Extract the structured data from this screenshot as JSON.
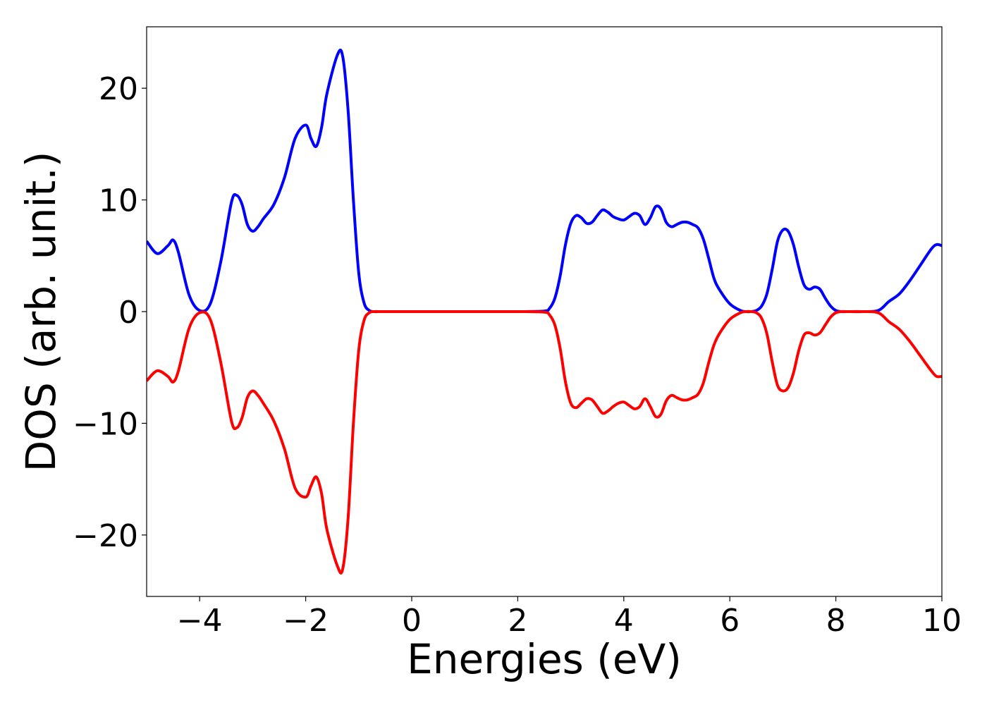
{
  "chart_data": {
    "type": "line",
    "title": "",
    "xlabel": "Energies (eV)",
    "ylabel": "DOS (arb. unit.)",
    "xlim": [
      -5,
      10
    ],
    "ylim": [
      -25.5,
      25.5
    ],
    "xticks": [
      -4,
      -2,
      0,
      2,
      4,
      6,
      8,
      10
    ],
    "xtick_labels": [
      "−4",
      "−2",
      "0",
      "2",
      "4",
      "6",
      "8",
      "10"
    ],
    "yticks": [
      20,
      10,
      0,
      -10,
      -20
    ],
    "ytick_labels": [
      "20",
      "10",
      "0",
      "−10",
      "−20"
    ],
    "grid": false,
    "legend": "none",
    "series": [
      {
        "color": "#0000ff",
        "x": [
          -5.0,
          -4.8,
          -4.6,
          -4.5,
          -4.4,
          -4.2,
          -4.0,
          -3.8,
          -3.6,
          -3.4,
          -3.3,
          -3.2,
          -3.1,
          -3.0,
          -2.9,
          -2.8,
          -2.6,
          -2.4,
          -2.2,
          -2.0,
          -1.9,
          -1.8,
          -1.7,
          -1.6,
          -1.4,
          -1.3,
          -1.2,
          -1.1,
          -1.0,
          -0.9,
          -0.8,
          -0.7,
          -0.6,
          -0.5,
          0.0,
          1.0,
          2.0,
          2.5,
          2.6,
          2.7,
          2.8,
          2.9,
          3.0,
          3.1,
          3.2,
          3.3,
          3.4,
          3.5,
          3.6,
          3.7,
          3.8,
          3.9,
          4.0,
          4.1,
          4.2,
          4.3,
          4.4,
          4.5,
          4.6,
          4.7,
          4.8,
          4.9,
          5.0,
          5.1,
          5.2,
          5.3,
          5.4,
          5.5,
          5.6,
          5.7,
          5.8,
          6.0,
          6.2,
          6.3,
          6.4,
          6.5,
          6.6,
          6.7,
          6.8,
          6.9,
          7.0,
          7.1,
          7.2,
          7.3,
          7.4,
          7.5,
          7.6,
          7.7,
          7.8,
          7.9,
          8.0,
          8.1,
          8.2,
          8.5,
          8.8,
          9.0,
          9.2,
          9.4,
          9.6,
          9.8,
          9.9,
          10.0
        ],
        "y": [
          6.3,
          5.2,
          5.9,
          6.4,
          5.3,
          1.5,
          0.1,
          0.7,
          4.5,
          9.8,
          10.4,
          9.6,
          7.8,
          7.2,
          7.6,
          8.3,
          9.6,
          12.0,
          15.5,
          16.7,
          15.5,
          14.8,
          16.5,
          19.5,
          23.0,
          22.8,
          18.0,
          10.0,
          3.5,
          0.8,
          0.1,
          0.0,
          0.0,
          0.0,
          0.0,
          0.0,
          0.0,
          0.05,
          0.3,
          1.2,
          3.2,
          6.0,
          7.9,
          8.6,
          8.4,
          7.9,
          8.0,
          8.6,
          9.1,
          8.9,
          8.5,
          8.3,
          8.2,
          8.5,
          8.8,
          8.6,
          7.8,
          8.4,
          9.4,
          9.2,
          8.0,
          7.6,
          7.8,
          8.0,
          8.0,
          7.8,
          7.5,
          6.5,
          4.8,
          3.0,
          2.0,
          0.7,
          0.1,
          0.0,
          0.0,
          0.1,
          0.5,
          1.6,
          3.8,
          6.3,
          7.3,
          7.2,
          6.0,
          4.0,
          2.4,
          2.0,
          2.2,
          2.0,
          1.2,
          0.5,
          0.1,
          0.0,
          0.0,
          0.0,
          0.1,
          0.9,
          1.6,
          2.8,
          4.2,
          5.6,
          6.0,
          5.9
        ]
      },
      {
        "color": "#ff0000",
        "x": [
          -5.0,
          -4.8,
          -4.6,
          -4.5,
          -4.4,
          -4.2,
          -4.0,
          -3.8,
          -3.6,
          -3.4,
          -3.3,
          -3.2,
          -3.1,
          -3.0,
          -2.9,
          -2.8,
          -2.6,
          -2.4,
          -2.2,
          -2.0,
          -1.9,
          -1.8,
          -1.7,
          -1.6,
          -1.4,
          -1.3,
          -1.2,
          -1.1,
          -1.0,
          -0.9,
          -0.8,
          -0.7,
          -0.6,
          -0.5,
          0.0,
          1.0,
          2.0,
          2.5,
          2.6,
          2.7,
          2.8,
          2.9,
          3.0,
          3.1,
          3.2,
          3.3,
          3.4,
          3.5,
          3.6,
          3.7,
          3.8,
          3.9,
          4.0,
          4.1,
          4.2,
          4.3,
          4.4,
          4.5,
          4.6,
          4.7,
          4.8,
          4.9,
          5.0,
          5.1,
          5.2,
          5.3,
          5.4,
          5.5,
          5.6,
          5.7,
          5.8,
          6.0,
          6.2,
          6.3,
          6.4,
          6.5,
          6.6,
          6.7,
          6.8,
          6.9,
          7.0,
          7.1,
          7.2,
          7.3,
          7.4,
          7.5,
          7.6,
          7.7,
          7.8,
          7.9,
          8.0,
          8.1,
          8.2,
          8.5,
          8.8,
          9.0,
          9.2,
          9.4,
          9.6,
          9.8,
          9.9,
          10.0
        ],
        "y": [
          -6.2,
          -5.3,
          -5.8,
          -6.3,
          -5.3,
          -1.5,
          -0.1,
          -0.7,
          -4.6,
          -9.8,
          -10.4,
          -9.5,
          -7.7,
          -7.1,
          -7.5,
          -8.2,
          -9.8,
          -12.3,
          -15.8,
          -16.6,
          -15.6,
          -14.8,
          -16.3,
          -19.5,
          -22.8,
          -23.0,
          -18.5,
          -10.0,
          -3.5,
          -0.8,
          -0.1,
          0.0,
          0.0,
          0.0,
          0.0,
          0.0,
          0.0,
          -0.05,
          -0.3,
          -1.2,
          -3.3,
          -6.3,
          -8.2,
          -8.6,
          -8.2,
          -7.8,
          -7.9,
          -8.5,
          -9.1,
          -8.9,
          -8.5,
          -8.2,
          -8.1,
          -8.4,
          -8.7,
          -8.5,
          -7.8,
          -8.5,
          -9.4,
          -9.2,
          -8.0,
          -7.5,
          -7.7,
          -7.9,
          -7.9,
          -7.7,
          -7.4,
          -6.4,
          -4.6,
          -3.0,
          -2.0,
          -0.7,
          -0.1,
          0.0,
          0.0,
          -0.1,
          -0.6,
          -2.0,
          -4.5,
          -6.6,
          -7.1,
          -6.8,
          -5.5,
          -3.5,
          -2.1,
          -1.9,
          -2.1,
          -1.9,
          -1.2,
          -0.5,
          -0.1,
          0.0,
          0.0,
          0.0,
          -0.1,
          -0.9,
          -1.6,
          -2.7,
          -4.0,
          -5.3,
          -5.8,
          -5.8
        ]
      }
    ]
  }
}
